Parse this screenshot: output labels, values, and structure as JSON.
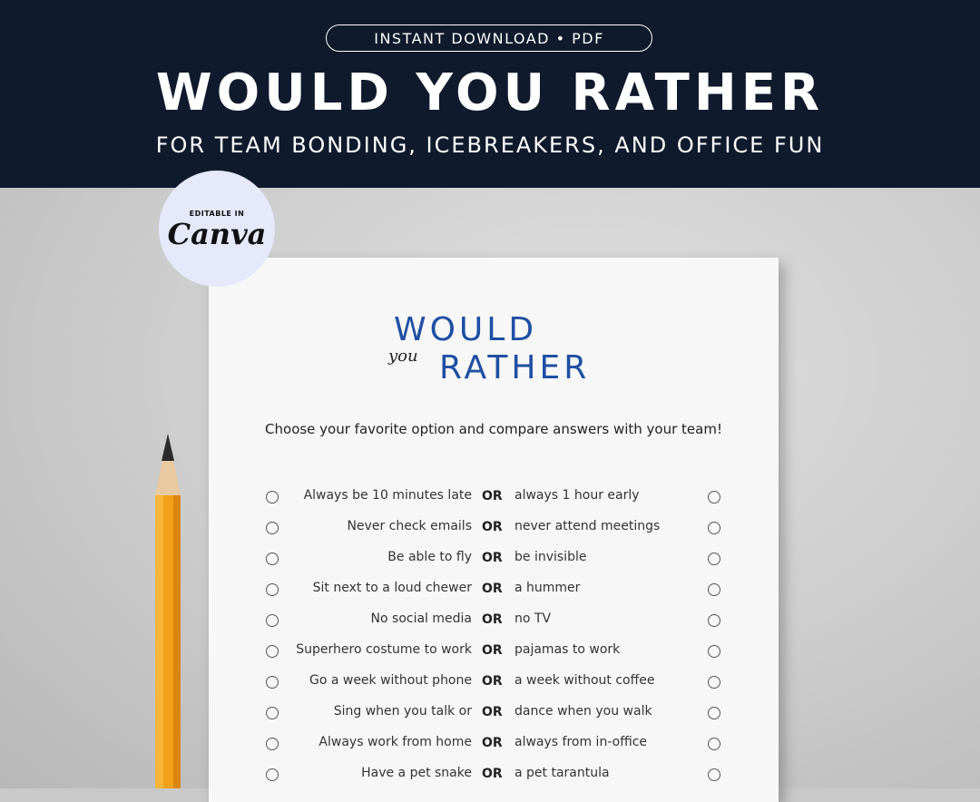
{
  "banner": {
    "pill": "INSTANT DOWNLOAD • PDF",
    "title": "WOULD YOU RATHER",
    "subtitle": "FOR TEAM BONDING, ICEBREAKERS, AND OFFICE FUN"
  },
  "badge": {
    "small": "EDITABLE IN",
    "logo": "Canva"
  },
  "sheet": {
    "title_line1": "WOULD",
    "title_script": "you",
    "title_line2": "RATHER",
    "instructions": "Choose your favorite option and compare answers with your team!",
    "or_label": "OR",
    "rows": [
      {
        "a": "Always be 10 minutes late",
        "b": "always 1 hour early"
      },
      {
        "a": "Never check emails",
        "b": "never attend meetings"
      },
      {
        "a": "Be able to fly",
        "b": "be invisible"
      },
      {
        "a": "Sit next to a loud chewer",
        "b": "a hummer"
      },
      {
        "a": "No social media",
        "b": "no TV"
      },
      {
        "a": "Superhero costume to work",
        "b": "pajamas to work"
      },
      {
        "a": "Go a week without phone",
        "b": "a week without coffee"
      },
      {
        "a": "Sing when you talk or",
        "b": "dance when you walk"
      },
      {
        "a": "Always work from home",
        "b": "always from in-office"
      },
      {
        "a": "Have a pet snake",
        "b": "a pet tarantula"
      }
    ]
  },
  "colors": {
    "banner_bg": "#0f1a2c",
    "accent_blue": "#1f4fa3",
    "badge_bg": "#e6e9fb",
    "pencil": "#f2a019"
  }
}
